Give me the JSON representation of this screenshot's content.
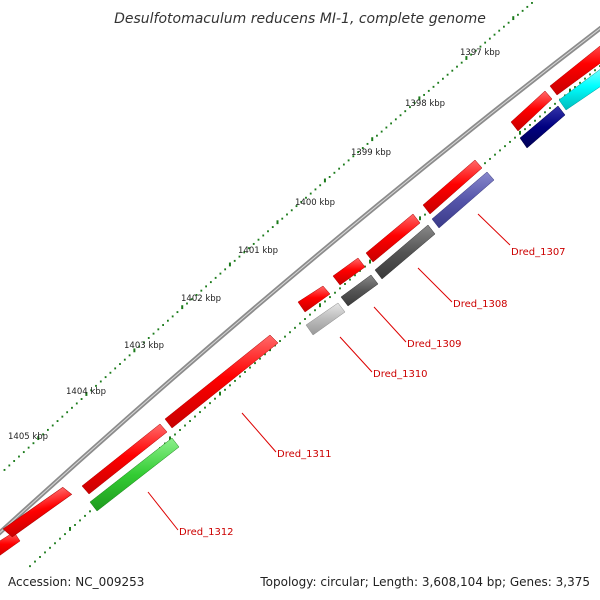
{
  "title": "Desulfotomaculum reducens MI-1, complete genome",
  "footer": {
    "accession": "Accession: NC_009253",
    "summary": "Topology: circular; Length: 3,608,104 bp; Genes: 3,375"
  },
  "ruler_labels": [
    "1397 kbp",
    "1398 kbp",
    "1399 kbp",
    "1400 kbp",
    "1401 kbp",
    "1402 kbp",
    "1403 kbp",
    "1404 kbp",
    "1405 kbp"
  ],
  "gene_labels": [
    "Dred_1307",
    "Dred_1308",
    "Dred_1309",
    "Dred_1310",
    "Dred_1311",
    "Dred_1312"
  ],
  "colors": {
    "backbone": "#8c8c8c",
    "forward_strand": "#ff0000",
    "tick": "#1a7a1a",
    "callout": "#dd0000",
    "navy": "#000080",
    "cyan": "#00ffff",
    "slate_blue": "#5555aa",
    "dark_gray": "#555555",
    "light_gray": "#bbbbbb",
    "green": "#33cc33"
  }
}
